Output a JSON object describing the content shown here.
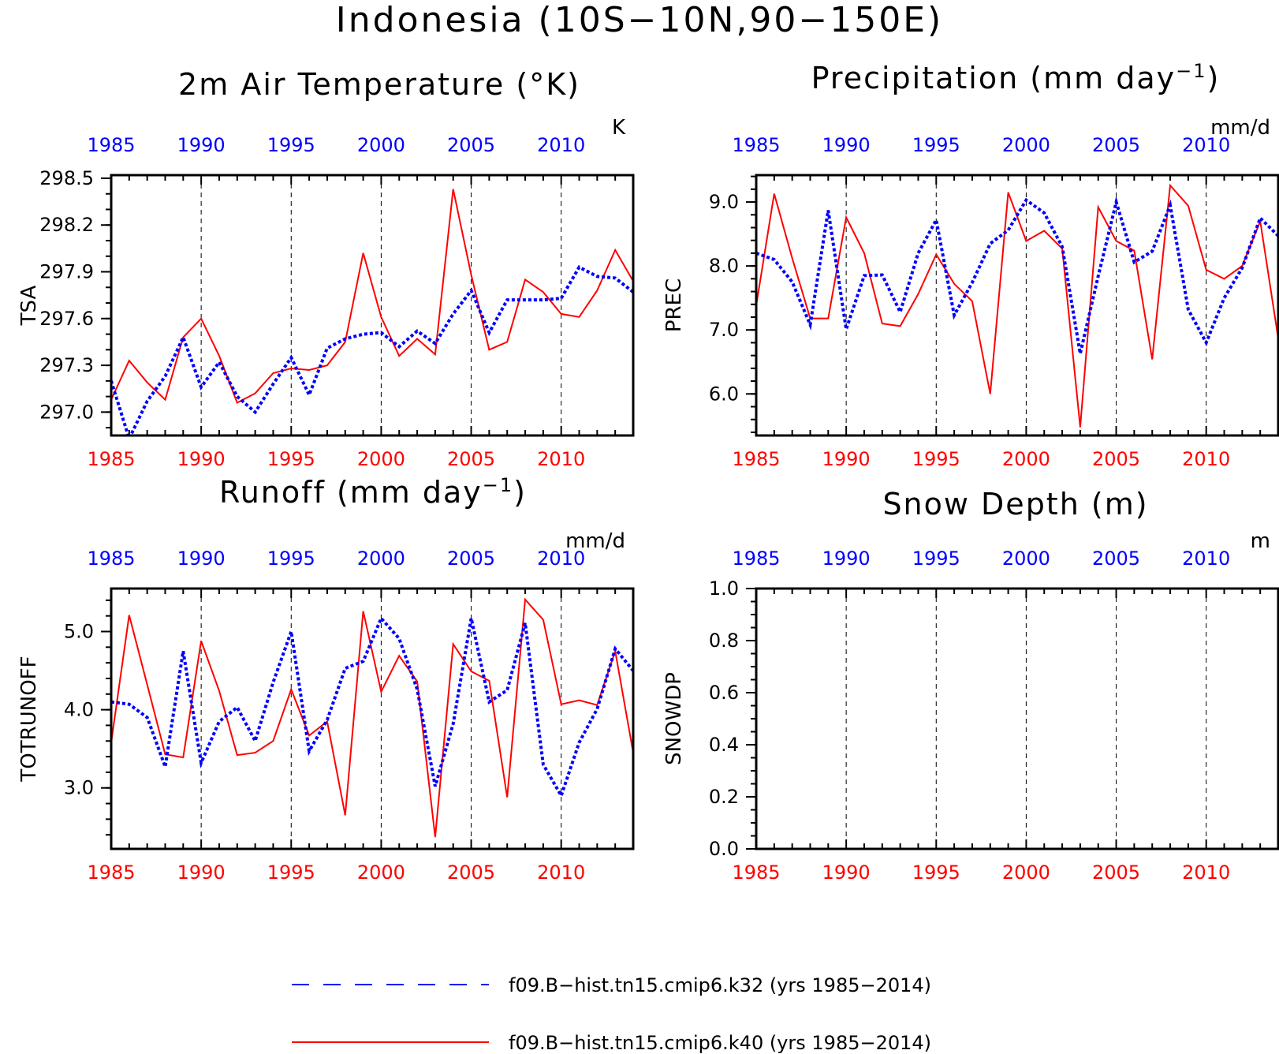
{
  "title": "Indonesia (10S−10N,90−150E)",
  "colors": {
    "k32": "#0000ff",
    "k40": "#ff0000",
    "axis": "#000000"
  },
  "legend": [
    {
      "label": "f09.B−hist.tn15.cmip6.k32 (yrs 1985−2014)",
      "color": "#0000ff",
      "style": "dashed"
    },
    {
      "label": "f09.B−hist.tn15.cmip6.k40 (yrs 1985−2014)",
      "color": "#ff0000",
      "style": "solid"
    }
  ],
  "chart_data": [
    {
      "type": "line",
      "title": "2m Air Temperature (°K)",
      "ylabel": "TSA",
      "units": "K",
      "xlim": [
        1985,
        2014
      ],
      "ylim": [
        296.85,
        298.52
      ],
      "yticks": [
        297.0,
        297.3,
        297.6,
        297.9,
        298.2,
        298.5
      ],
      "ytick_labels": [
        "297.0",
        "297.3",
        "297.6",
        "297.9",
        "298.2",
        "298.5"
      ],
      "yminor": 0.1,
      "xticks": [
        1985,
        1990,
        1995,
        2000,
        2005,
        2010
      ],
      "x": [
        1985,
        1986,
        1987,
        1988,
        1989,
        1990,
        1991,
        1992,
        1993,
        1994,
        1995,
        1996,
        1997,
        1998,
        1999,
        2000,
        2001,
        2002,
        2003,
        2004,
        2005,
        2006,
        2007,
        2008,
        2009,
        2010,
        2011,
        2012,
        2013,
        2014
      ],
      "series": [
        {
          "name": "f09.B-hist.tn15.cmip6.k32",
          "values": [
            297.2,
            296.83,
            297.07,
            297.23,
            297.48,
            297.16,
            297.32,
            297.1,
            297.0,
            297.18,
            297.35,
            297.11,
            297.41,
            297.47,
            297.5,
            297.51,
            297.42,
            297.52,
            297.44,
            297.63,
            297.78,
            297.51,
            297.72,
            297.72,
            297.72,
            297.73,
            297.93,
            297.87,
            297.86,
            297.77
          ]
        },
        {
          "name": "f09.B-hist.tn15.cmip6.k40",
          "values": [
            297.08,
            297.33,
            297.19,
            297.08,
            297.48,
            297.6,
            297.36,
            297.06,
            297.12,
            297.25,
            297.28,
            297.27,
            297.3,
            297.45,
            298.02,
            297.61,
            297.36,
            297.47,
            297.37,
            298.43,
            297.88,
            297.4,
            297.45,
            297.85,
            297.77,
            297.63,
            297.61,
            297.78,
            298.04,
            297.84
          ]
        }
      ]
    },
    {
      "type": "line",
      "title": "Precipitation (mm day",
      "title_sup": "−1",
      "ylabel": "PREC",
      "units": "mm/d",
      "xlim": [
        1985,
        2014
      ],
      "ylim": [
        5.35,
        9.42
      ],
      "yticks": [
        6.0,
        7.0,
        8.0,
        9.0
      ],
      "ytick_labels": [
        "6.0",
        "7.0",
        "8.0",
        "9.0"
      ],
      "yminor": 0.2,
      "xticks": [
        1985,
        1990,
        1995,
        2000,
        2005,
        2010
      ],
      "x": [
        1985,
        1986,
        1987,
        1988,
        1989,
        1990,
        1991,
        1992,
        1993,
        1994,
        1995,
        1996,
        1997,
        1998,
        1999,
        2000,
        2001,
        2002,
        2003,
        2004,
        2005,
        2006,
        2007,
        2008,
        2009,
        2010,
        2011,
        2012,
        2013,
        2014
      ],
      "series": [
        {
          "name": "f09.B-hist.tn15.cmip6.k32",
          "values": [
            8.2,
            8.1,
            7.75,
            7.08,
            8.87,
            7.01,
            7.85,
            7.86,
            7.28,
            8.2,
            8.72,
            7.23,
            7.74,
            8.35,
            8.56,
            9.03,
            8.83,
            8.3,
            6.63,
            7.84,
            9.0,
            8.06,
            8.23,
            8.95,
            7.32,
            6.8,
            7.5,
            7.97,
            8.75,
            8.47
          ]
        },
        {
          "name": "f09.B-hist.tn15.cmip6.k40",
          "values": [
            7.38,
            9.13,
            8.12,
            7.18,
            7.18,
            8.76,
            8.2,
            7.1,
            7.06,
            7.56,
            8.18,
            7.72,
            7.45,
            6.0,
            9.15,
            8.39,
            8.55,
            8.27,
            5.48,
            8.92,
            8.39,
            8.24,
            6.54,
            9.26,
            8.94,
            7.94,
            7.8,
            8.0,
            8.7,
            6.87
          ]
        }
      ]
    },
    {
      "type": "line",
      "title": "Runoff (mm day",
      "title_sup": "−1",
      "ylabel": "TOTRUNOFF",
      "units": "mm/d",
      "xlim": [
        1985,
        2014
      ],
      "ylim": [
        2.22,
        5.55
      ],
      "yticks": [
        3.0,
        4.0,
        5.0
      ],
      "ytick_labels": [
        "3.0",
        "4.0",
        "5.0"
      ],
      "yminor": 0.2,
      "xticks": [
        1985,
        1990,
        1995,
        2000,
        2005,
        2010
      ],
      "x": [
        1985,
        1986,
        1987,
        1988,
        1989,
        1990,
        1991,
        1992,
        1993,
        1994,
        1995,
        1996,
        1997,
        1998,
        1999,
        2000,
        2001,
        2002,
        2003,
        2004,
        2005,
        2006,
        2007,
        2008,
        2009,
        2010,
        2011,
        2012,
        2013,
        2014
      ],
      "series": [
        {
          "name": "f09.B-hist.tn15.cmip6.k32",
          "values": [
            4.1,
            4.07,
            3.9,
            3.27,
            4.75,
            3.32,
            3.85,
            4.03,
            3.6,
            4.35,
            5.0,
            3.47,
            3.87,
            4.53,
            4.62,
            5.17,
            4.91,
            4.26,
            3.02,
            3.82,
            5.17,
            4.1,
            4.25,
            5.11,
            3.3,
            2.9,
            3.58,
            4.01,
            4.78,
            4.5
          ]
        },
        {
          "name": "f09.B-hist.tn15.cmip6.k40",
          "values": [
            3.58,
            5.21,
            4.32,
            3.43,
            3.39,
            4.88,
            4.24,
            3.42,
            3.45,
            3.6,
            4.26,
            3.67,
            3.85,
            2.65,
            5.26,
            4.23,
            4.69,
            4.36,
            2.37,
            4.84,
            4.49,
            4.37,
            2.88,
            5.41,
            5.15,
            4.07,
            4.12,
            4.06,
            4.75,
            3.45
          ]
        }
      ]
    },
    {
      "type": "line",
      "title": "Snow Depth (m)",
      "ylabel": "SNOWDP",
      "units": "m",
      "xlim": [
        1985,
        2014
      ],
      "ylim": [
        0.0,
        1.0
      ],
      "yticks": [
        0.0,
        0.2,
        0.4,
        0.6,
        0.8,
        1.0
      ],
      "ytick_labels": [
        "0.0",
        "0.2",
        "0.4",
        "0.6",
        "0.8",
        "1.0"
      ],
      "yminor": 0.05,
      "xticks": [
        1985,
        1990,
        1995,
        2000,
        2005,
        2010
      ],
      "x": [],
      "series": []
    }
  ]
}
